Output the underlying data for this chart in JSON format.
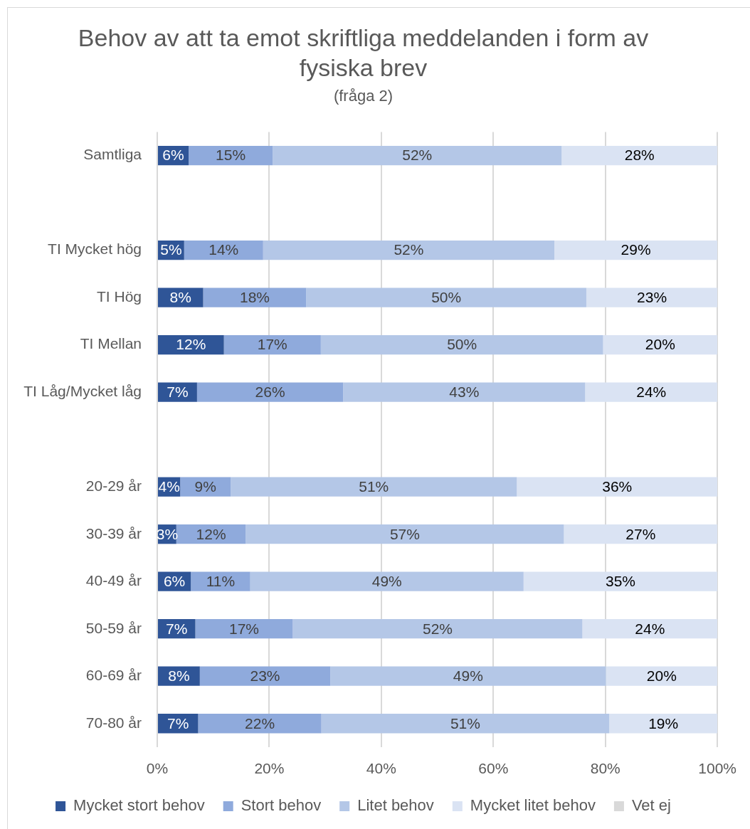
{
  "chart_data": {
    "type": "bar",
    "orientation": "horizontal",
    "stacked": true,
    "title": "Behov av att ta emot skriftliga meddelanden i form av fysiska brev",
    "subtitle": "(fråga 2)",
    "categories": [
      "Samtliga",
      null,
      "TI Mycket hög",
      "TI Hög",
      "TI Mellan",
      "TI Låg/Mycket låg",
      null,
      "20-29 år",
      "30-39 år",
      "40-49 år",
      "50-59 år",
      "60-69 år",
      "70-80 år"
    ],
    "series": [
      {
        "name": "Mycket stort behov",
        "color": "#2f5597",
        "values": [
          5.6,
          null,
          4.8,
          8.2,
          11.9,
          7.1,
          null,
          4.1,
          3.4,
          6.0,
          6.8,
          7.6,
          7.3
        ],
        "value_labels": [
          "6%",
          null,
          "5%",
          "8%",
          "12%",
          "7%",
          null,
          "4%",
          "3%",
          "6%",
          "7%",
          "8%",
          "7%"
        ]
      },
      {
        "name": "Stort behov",
        "color": "#8faadc",
        "values": [
          15.0,
          null,
          14.1,
          18.4,
          17.3,
          26.1,
          null,
          9.0,
          12.4,
          10.6,
          17.4,
          23.3,
          22.0
        ],
        "value_labels": [
          "15%",
          null,
          "14%",
          "18%",
          "17%",
          "26%",
          null,
          "9%",
          "12%",
          "11%",
          "17%",
          "23%",
          "22%"
        ]
      },
      {
        "name": "Litet behov",
        "color": "#b4c7e7",
        "values": [
          51.6,
          null,
          52.0,
          50.0,
          50.4,
          43.2,
          null,
          51.1,
          56.8,
          48.8,
          51.7,
          49.2,
          51.4
        ],
        "value_labels": [
          "52%",
          null,
          "52%",
          "50%",
          "50%",
          "43%",
          null,
          "51%",
          "57%",
          "49%",
          "52%",
          "49%",
          "51%"
        ]
      },
      {
        "name": "Mycket litet behov",
        "color": "#dae3f3",
        "values": [
          27.8,
          null,
          29.1,
          23.4,
          20.4,
          23.6,
          null,
          35.8,
          27.4,
          34.6,
          24.1,
          19.9,
          19.3
        ],
        "value_labels": [
          "28%",
          null,
          "29%",
          "23%",
          "20%",
          "24%",
          null,
          "36%",
          "27%",
          "35%",
          "24%",
          "20%",
          "19%"
        ]
      },
      {
        "name": "Vet ej",
        "color": "#d9d9d9",
        "values": [
          0,
          null,
          0,
          0,
          0,
          0,
          null,
          0,
          0,
          0,
          0,
          0,
          0
        ]
      }
    ],
    "xlim": [
      0,
      100
    ],
    "xticks": [
      {
        "value": 0,
        "label": "0%"
      },
      {
        "value": 20,
        "label": "20%"
      },
      {
        "value": 40,
        "label": "40%"
      },
      {
        "value": 60,
        "label": "60%"
      },
      {
        "value": 80,
        "label": "80%"
      },
      {
        "value": 100,
        "label": "100%"
      }
    ],
    "grid": "x",
    "legend": "bottom"
  }
}
